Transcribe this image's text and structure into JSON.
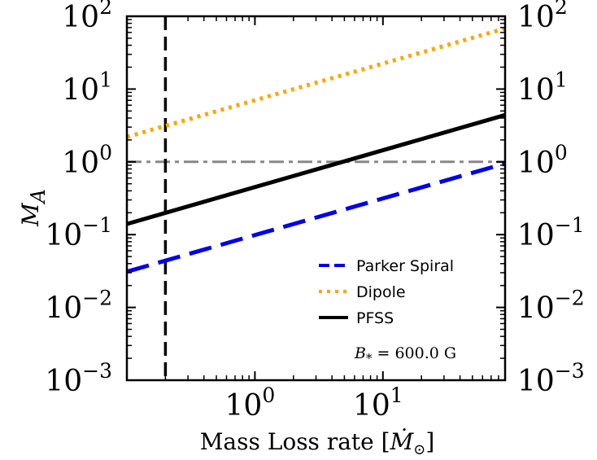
{
  "chart_data": {
    "type": "line",
    "xscale": "log",
    "yscale": "log",
    "xlim": [
      0.1,
      90
    ],
    "ylim": [
      0.001,
      100
    ],
    "xlabel_prefix": "Mass Loss rate [",
    "xlabel_symbol": "Ṁ",
    "xlabel_sub": "⊙",
    "xlabel_suffix": "]",
    "ylabel": "M",
    "ylabel_sub": "A",
    "x_ticks": [
      {
        "value": 1,
        "base": "10",
        "exp": "0"
      },
      {
        "value": 10,
        "base": "10",
        "exp": "1"
      }
    ],
    "y_ticks": [
      {
        "value": 0.001,
        "base": "10",
        "exp": "−3"
      },
      {
        "value": 0.01,
        "base": "10",
        "exp": "−2"
      },
      {
        "value": 0.1,
        "base": "10",
        "exp": "−1"
      },
      {
        "value": 1,
        "base": "10",
        "exp": "0"
      },
      {
        "value": 10,
        "base": "10",
        "exp": "1"
      },
      {
        "value": 100,
        "base": "10",
        "exp": "2"
      }
    ],
    "series": [
      {
        "name": "Parker Spiral",
        "color": "#0000ee",
        "style": "dashed",
        "x": [
          0.1,
          90
        ],
        "y": [
          0.031,
          0.95
        ]
      },
      {
        "name": "Dipole",
        "color": "#ffa500",
        "style": "dotted",
        "x": [
          0.1,
          90
        ],
        "y": [
          2.2,
          68
        ]
      },
      {
        "name": "PFSS",
        "color": "#000000",
        "style": "solid",
        "x": [
          0.1,
          90
        ],
        "y": [
          0.14,
          4.4
        ]
      }
    ],
    "reference_lines": [
      {
        "orientation": "horizontal",
        "value": 1.0,
        "color": "#888888",
        "style": "dashdot"
      },
      {
        "orientation": "vertical",
        "value": 0.2,
        "color": "#000000",
        "style": "dashed"
      }
    ],
    "legend": {
      "position": "lower-right",
      "entries": [
        "Parker Spiral",
        "Dipole",
        "PFSS"
      ],
      "note_symbol": "B",
      "note_sub": "*",
      "note_text": " = 600.0 G"
    }
  }
}
